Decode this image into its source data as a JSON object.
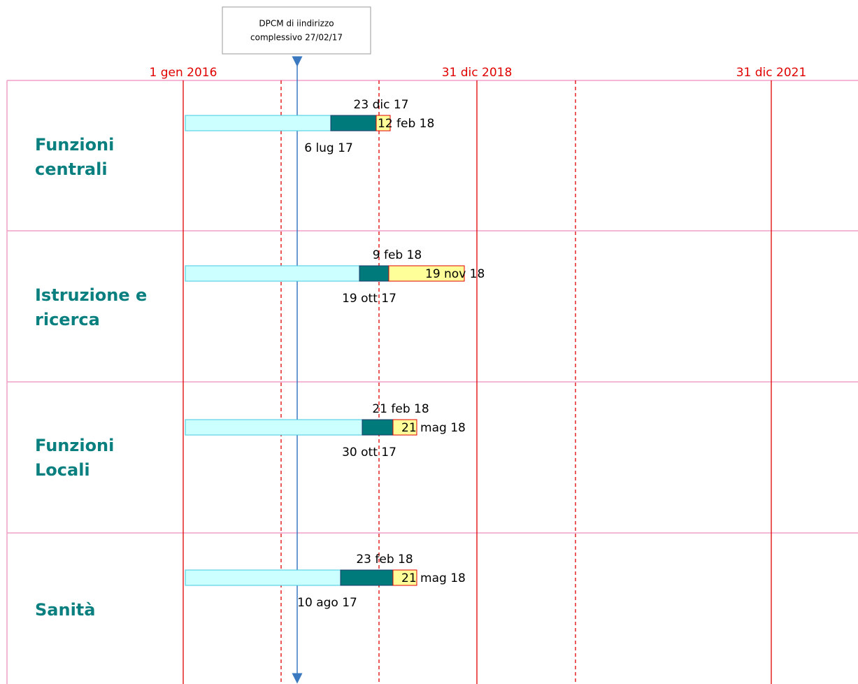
{
  "header": {
    "box_lines": [
      "DPCM di iindirizzo",
      "complessivo  27/02/17"
    ]
  },
  "timeline": [
    "1 gen 2016",
    "31 dic 2018",
    "31 dic 2021"
  ],
  "rows": [
    {
      "title": [
        "Funzioni",
        "centrali"
      ],
      "start_label": "6 lug 17",
      "mid_label": "23 dic 17",
      "end_label": "12 feb 18"
    },
    {
      "title": [
        "Istruzione e",
        "ricerca"
      ],
      "start_label": "19 ott 17",
      "mid_label": "9 feb 18",
      "end_label": "19 nov 18"
    },
    {
      "title": [
        "Funzioni",
        "Locali"
      ],
      "start_label": "30 ott 17",
      "mid_label": "21 feb 18",
      "end_label": "21 mag 18"
    },
    {
      "title": [
        "Sanità"
      ],
      "start_label": "10 ago 17",
      "mid_label": "23 feb 18",
      "end_label": "21 mag 18"
    }
  ]
}
